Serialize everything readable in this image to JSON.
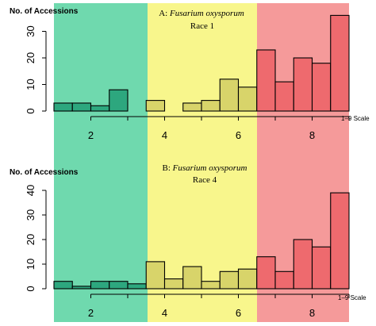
{
  "colors": {
    "green_zone": "#6FD9AE",
    "yellow_zone": "#F8F68C",
    "red_zone": "#F59A9A",
    "green_bar": "#2DA77E",
    "yellow_bar": "#D8D46A",
    "red_bar": "#EE6A6E",
    "axis": "#000000"
  },
  "chart_data": [
    {
      "type": "bar",
      "title_prefix": "A: ",
      "title_species": "Fusarium oxysporum",
      "title_line2": "Race 1",
      "ylabel": "No. of Accessions",
      "xlabel": "1–9 Scale",
      "ylim": [
        0,
        35
      ],
      "yticks": [
        0,
        10,
        20,
        30
      ],
      "xticks": [
        2,
        4,
        6,
        8
      ],
      "xlim": [
        1,
        9
      ],
      "bins": [
        {
          "x0": 1.0,
          "x1": 1.5,
          "value": 3,
          "zone": "green"
        },
        {
          "x0": 1.5,
          "x1": 2.0,
          "value": 3,
          "zone": "green"
        },
        {
          "x0": 2.0,
          "x1": 2.5,
          "value": 2,
          "zone": "green"
        },
        {
          "x0": 2.5,
          "x1": 3.0,
          "value": 8,
          "zone": "green"
        },
        {
          "x0": 3.5,
          "x1": 4.0,
          "value": 4,
          "zone": "yellow"
        },
        {
          "x0": 4.5,
          "x1": 5.0,
          "value": 3,
          "zone": "yellow"
        },
        {
          "x0": 5.0,
          "x1": 5.5,
          "value": 4,
          "zone": "yellow"
        },
        {
          "x0": 5.5,
          "x1": 6.0,
          "value": 12,
          "zone": "yellow"
        },
        {
          "x0": 6.0,
          "x1": 6.5,
          "value": 9,
          "zone": "yellow"
        },
        {
          "x0": 6.5,
          "x1": 7.0,
          "value": 23,
          "zone": "red"
        },
        {
          "x0": 7.0,
          "x1": 7.5,
          "value": 11,
          "zone": "red"
        },
        {
          "x0": 7.5,
          "x1": 8.0,
          "value": 20,
          "zone": "red"
        },
        {
          "x0": 8.0,
          "x1": 8.5,
          "value": 18,
          "zone": "red"
        },
        {
          "x0": 8.5,
          "x1": 9.0,
          "value": 36,
          "zone": "red"
        }
      ]
    },
    {
      "type": "bar",
      "title_prefix": "B: ",
      "title_species": "Fusarium oxysporum",
      "title_line2": "Race 4",
      "ylabel": "No. of Accessions",
      "xlabel": "1–9 Scale",
      "ylim": [
        0,
        42
      ],
      "yticks": [
        0,
        10,
        20,
        30,
        40
      ],
      "xticks": [
        2,
        4,
        6,
        8
      ],
      "xlim": [
        1,
        9
      ],
      "bins": [
        {
          "x0": 1.0,
          "x1": 1.5,
          "value": 3,
          "zone": "green"
        },
        {
          "x0": 1.5,
          "x1": 2.0,
          "value": 1,
          "zone": "green"
        },
        {
          "x0": 2.0,
          "x1": 2.5,
          "value": 3,
          "zone": "green"
        },
        {
          "x0": 2.5,
          "x1": 3.0,
          "value": 3,
          "zone": "green"
        },
        {
          "x0": 3.0,
          "x1": 3.5,
          "value": 2,
          "zone": "green"
        },
        {
          "x0": 3.5,
          "x1": 4.0,
          "value": 11,
          "zone": "yellow"
        },
        {
          "x0": 4.0,
          "x1": 4.5,
          "value": 4,
          "zone": "yellow"
        },
        {
          "x0": 4.5,
          "x1": 5.0,
          "value": 9,
          "zone": "yellow"
        },
        {
          "x0": 5.0,
          "x1": 5.5,
          "value": 3,
          "zone": "yellow"
        },
        {
          "x0": 5.5,
          "x1": 6.0,
          "value": 7,
          "zone": "yellow"
        },
        {
          "x0": 6.0,
          "x1": 6.5,
          "value": 8,
          "zone": "yellow"
        },
        {
          "x0": 6.5,
          "x1": 7.0,
          "value": 13,
          "zone": "red"
        },
        {
          "x0": 7.0,
          "x1": 7.5,
          "value": 7,
          "zone": "red"
        },
        {
          "x0": 7.5,
          "x1": 8.0,
          "value": 20,
          "zone": "red"
        },
        {
          "x0": 8.0,
          "x1": 8.5,
          "value": 17,
          "zone": "red"
        },
        {
          "x0": 8.5,
          "x1": 9.0,
          "value": 39,
          "zone": "red"
        }
      ]
    }
  ]
}
